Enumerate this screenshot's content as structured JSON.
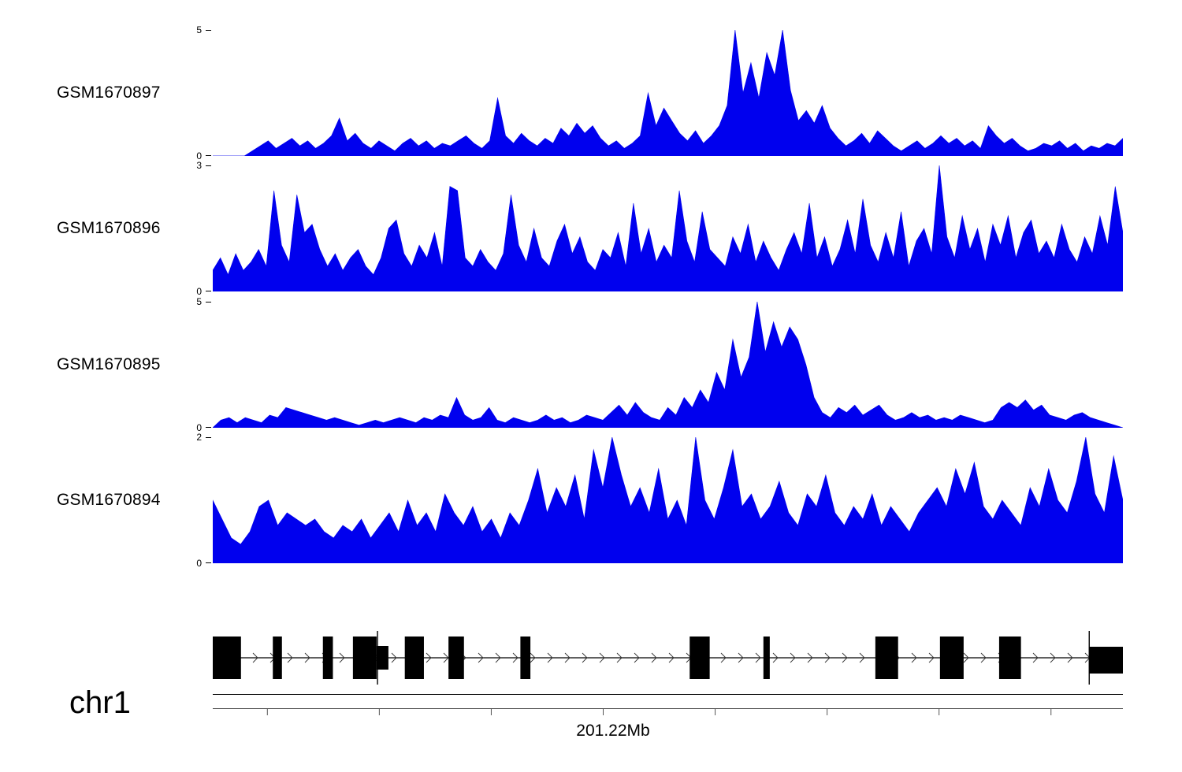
{
  "chart_data": {
    "type": "area",
    "title": "",
    "fill_color": "#0000ee",
    "legend": "none",
    "grid": false,
    "tracks": [
      {
        "label": "GSM1670897",
        "ymax": 5,
        "ymax_label": "5",
        "ymin_label": "0",
        "values": [
          0,
          0,
          0,
          0,
          0,
          0.2,
          0.4,
          0.6,
          0.3,
          0.5,
          0.7,
          0.4,
          0.6,
          0.3,
          0.5,
          0.8,
          1.5,
          0.6,
          0.9,
          0.5,
          0.3,
          0.6,
          0.4,
          0.2,
          0.5,
          0.7,
          0.4,
          0.6,
          0.3,
          0.5,
          0.4,
          0.6,
          0.8,
          0.5,
          0.3,
          0.6,
          2.3,
          0.8,
          0.5,
          0.9,
          0.6,
          0.4,
          0.7,
          0.5,
          1.1,
          0.8,
          1.3,
          0.9,
          1.2,
          0.7,
          0.4,
          0.6,
          0.3,
          0.5,
          0.8,
          2.5,
          1.2,
          1.9,
          1.4,
          0.9,
          0.6,
          1.0,
          0.5,
          0.8,
          1.2,
          2.0,
          5.0,
          2.5,
          3.7,
          2.3,
          4.1,
          3.2,
          5.0,
          2.6,
          1.4,
          1.8,
          1.3,
          2.0,
          1.1,
          0.7,
          0.4,
          0.6,
          0.9,
          0.5,
          1.0,
          0.7,
          0.4,
          0.2,
          0.4,
          0.6,
          0.3,
          0.5,
          0.8,
          0.5,
          0.7,
          0.4,
          0.6,
          0.3,
          1.2,
          0.8,
          0.5,
          0.7,
          0.4,
          0.2,
          0.3,
          0.5,
          0.4,
          0.6,
          0.3,
          0.5,
          0.2,
          0.4,
          0.3,
          0.5,
          0.4,
          0.7
        ]
      },
      {
        "label": "GSM1670896",
        "ymax": 3,
        "ymax_label": "3",
        "ymin_label": "0",
        "values": [
          0.5,
          0.8,
          0.4,
          0.9,
          0.5,
          0.7,
          1.0,
          0.6,
          2.4,
          1.1,
          0.7,
          2.3,
          1.4,
          1.6,
          1.0,
          0.6,
          0.9,
          0.5,
          0.8,
          1.0,
          0.6,
          0.4,
          0.8,
          1.5,
          1.7,
          0.9,
          0.6,
          1.1,
          0.8,
          1.4,
          0.6,
          2.5,
          2.4,
          0.8,
          0.6,
          1.0,
          0.7,
          0.5,
          0.9,
          2.3,
          1.1,
          0.7,
          1.5,
          0.8,
          0.6,
          1.2,
          1.6,
          0.9,
          1.3,
          0.7,
          0.5,
          1.0,
          0.8,
          1.4,
          0.6,
          2.1,
          0.9,
          1.5,
          0.7,
          1.1,
          0.8,
          2.4,
          1.2,
          0.7,
          1.9,
          1.0,
          0.8,
          0.6,
          1.3,
          0.9,
          1.6,
          0.7,
          1.2,
          0.8,
          0.5,
          1.0,
          1.4,
          0.9,
          2.1,
          0.8,
          1.3,
          0.6,
          1.0,
          1.7,
          0.9,
          2.2,
          1.1,
          0.7,
          1.4,
          0.8,
          1.9,
          0.6,
          1.2,
          1.5,
          0.9,
          3.0,
          1.3,
          0.8,
          1.8,
          1.0,
          1.5,
          0.7,
          1.6,
          1.1,
          1.8,
          0.8,
          1.4,
          1.7,
          0.9,
          1.2,
          0.8,
          1.6,
          1.0,
          0.7,
          1.3,
          0.9,
          1.8,
          1.1,
          2.5,
          1.4
        ]
      },
      {
        "label": "GSM1670895",
        "ymax": 5,
        "ymax_label": "5",
        "ymin_label": "0",
        "values": [
          0,
          0.3,
          0.4,
          0.2,
          0.4,
          0.3,
          0.2,
          0.5,
          0.4,
          0.8,
          0.7,
          0.6,
          0.5,
          0.4,
          0.3,
          0.4,
          0.3,
          0.2,
          0.1,
          0.2,
          0.3,
          0.2,
          0.3,
          0.4,
          0.3,
          0.2,
          0.4,
          0.3,
          0.5,
          0.4,
          1.2,
          0.5,
          0.3,
          0.4,
          0.8,
          0.3,
          0.2,
          0.4,
          0.3,
          0.2,
          0.3,
          0.5,
          0.3,
          0.4,
          0.2,
          0.3,
          0.5,
          0.4,
          0.3,
          0.6,
          0.9,
          0.5,
          1.0,
          0.6,
          0.4,
          0.3,
          0.8,
          0.5,
          1.2,
          0.8,
          1.5,
          1.0,
          2.2,
          1.5,
          3.5,
          2.0,
          2.8,
          5.0,
          3.0,
          4.2,
          3.2,
          4.0,
          3.5,
          2.5,
          1.2,
          0.6,
          0.4,
          0.8,
          0.6,
          0.9,
          0.5,
          0.7,
          0.9,
          0.5,
          0.3,
          0.4,
          0.6,
          0.4,
          0.5,
          0.3,
          0.4,
          0.3,
          0.5,
          0.4,
          0.3,
          0.2,
          0.3,
          0.8,
          1.0,
          0.8,
          1.1,
          0.7,
          0.9,
          0.5,
          0.4,
          0.3,
          0.5,
          0.6,
          0.4,
          0.3,
          0.2,
          0.1,
          0
        ]
      },
      {
        "label": "GSM1670894",
        "ymax": 2,
        "ymax_label": "2",
        "ymin_label": "0",
        "values": [
          1.0,
          0.7,
          0.4,
          0.3,
          0.5,
          0.9,
          1.0,
          0.6,
          0.8,
          0.7,
          0.6,
          0.7,
          0.5,
          0.4,
          0.6,
          0.5,
          0.7,
          0.4,
          0.6,
          0.8,
          0.5,
          1.0,
          0.6,
          0.8,
          0.5,
          1.1,
          0.8,
          0.6,
          0.9,
          0.5,
          0.7,
          0.4,
          0.8,
          0.6,
          1.0,
          1.5,
          0.8,
          1.2,
          0.9,
          1.4,
          0.7,
          1.8,
          1.2,
          2.0,
          1.4,
          0.9,
          1.2,
          0.8,
          1.5,
          0.7,
          1.0,
          0.6,
          2.0,
          1.0,
          0.7,
          1.2,
          1.8,
          0.9,
          1.1,
          0.7,
          0.9,
          1.3,
          0.8,
          0.6,
          1.1,
          0.9,
          1.4,
          0.8,
          0.6,
          0.9,
          0.7,
          1.1,
          0.6,
          0.9,
          0.7,
          0.5,
          0.8,
          1.0,
          1.2,
          0.9,
          1.5,
          1.1,
          1.6,
          0.9,
          0.7,
          1.0,
          0.8,
          0.6,
          1.2,
          0.9,
          1.5,
          1.0,
          0.8,
          1.3,
          2.0,
          1.1,
          0.8,
          1.7,
          1.0
        ]
      }
    ],
    "gene_track": {
      "chromosome_label": "chr1",
      "position_label": "201.22Mb",
      "strand": "+",
      "exon_color": "#000000",
      "exons": [
        {
          "x": 0.0,
          "w": 0.031,
          "h": "full"
        },
        {
          "x": 0.066,
          "w": 0.01,
          "h": "full"
        },
        {
          "x": 0.121,
          "w": 0.011,
          "h": "full"
        },
        {
          "x": 0.154,
          "w": 0.026,
          "h": "full"
        },
        {
          "x": 0.18,
          "w": 0.013,
          "h": "utr"
        },
        {
          "x": 0.211,
          "w": 0.021,
          "h": "full"
        },
        {
          "x": 0.259,
          "w": 0.017,
          "h": "full"
        },
        {
          "x": 0.338,
          "w": 0.011,
          "h": "full"
        },
        {
          "x": 0.524,
          "w": 0.022,
          "h": "full"
        },
        {
          "x": 0.605,
          "w": 0.007,
          "h": "full"
        },
        {
          "x": 0.728,
          "w": 0.025,
          "h": "full"
        },
        {
          "x": 0.799,
          "w": 0.026,
          "h": "full"
        },
        {
          "x": 0.864,
          "w": 0.024,
          "h": "full"
        },
        {
          "x": 0.963,
          "w": 0.037,
          "h": "end"
        }
      ],
      "vlines": [
        0.181,
        0.963
      ],
      "axis_ticks": [
        0.06,
        0.183,
        0.306,
        0.429,
        0.552,
        0.675,
        0.798,
        0.921
      ]
    }
  }
}
